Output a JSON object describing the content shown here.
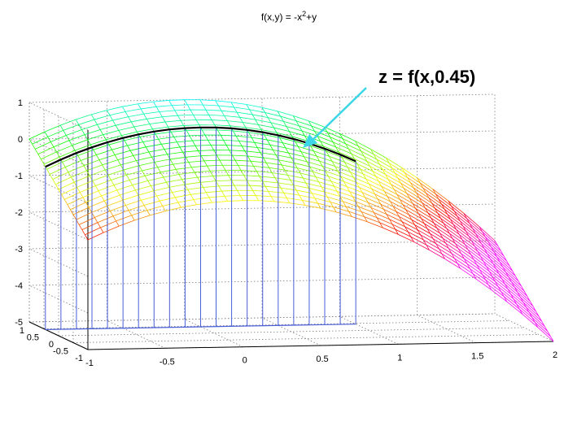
{
  "chart_data": {
    "type": "surface",
    "title": "f(x,y) = -x",
    "title_superscript": "2",
    "title_suffix": "+y",
    "function": "z = -x^2 + y",
    "x_range": [
      -1,
      2
    ],
    "y_range": [
      -1,
      1
    ],
    "z_range": [
      -5,
      1
    ],
    "x_ticks": [
      "-1",
      "-0.5",
      "0",
      "0.5",
      "1",
      "1.5",
      "2"
    ],
    "y_ticks": [
      "-1",
      "-0.5",
      "0",
      "0.5",
      "1"
    ],
    "z_ticks": [
      "1",
      "0",
      "-1",
      "-2",
      "-3",
      "-4",
      "-5"
    ],
    "slice": {
      "y": 0.45,
      "x_range": [
        -1,
        1
      ],
      "label": "z = f(x,0.45)",
      "color": "#000000",
      "stem_color": "#4a5fd8"
    },
    "arrow_color": "#3cd6e6",
    "grid": true,
    "colormap": "hsv"
  }
}
